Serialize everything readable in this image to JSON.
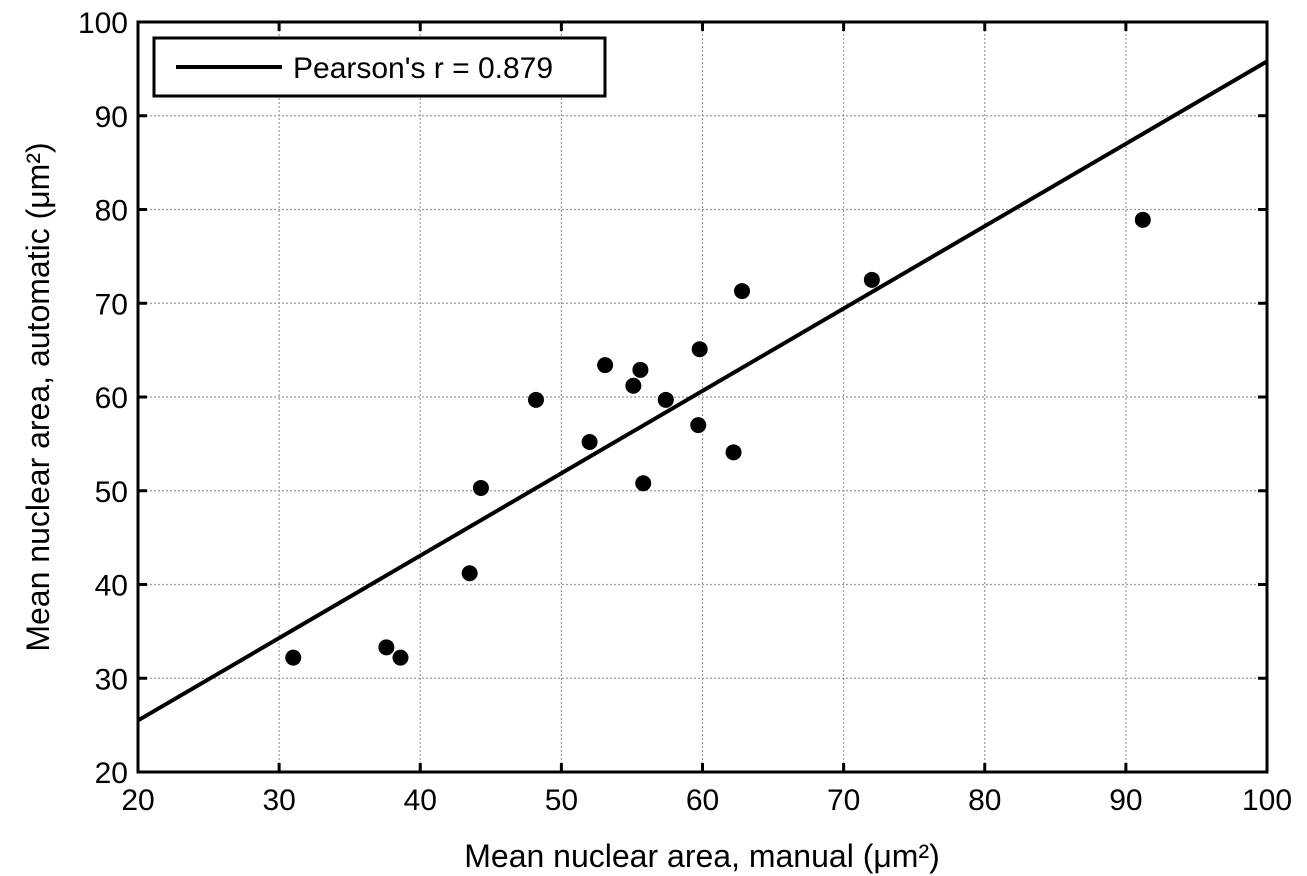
{
  "chart_data": {
    "type": "scatter",
    "xlabel": "Mean nuclear area, manual (μm²)",
    "ylabel": "Mean nuclear area, automatic (μm²)",
    "xlim": [
      20,
      100
    ],
    "ylim": [
      20,
      100
    ],
    "xticks": [
      20,
      30,
      40,
      50,
      60,
      70,
      80,
      90,
      100
    ],
    "yticks": [
      20,
      30,
      40,
      50,
      60,
      70,
      80,
      90,
      100
    ],
    "grid": true,
    "legend_position": "top-left",
    "series": [
      {
        "marker": "circle",
        "color": "#000000",
        "points": [
          {
            "x": 31.0,
            "y": 32.2
          },
          {
            "x": 37.6,
            "y": 33.3
          },
          {
            "x": 38.6,
            "y": 32.2
          },
          {
            "x": 43.5,
            "y": 41.2
          },
          {
            "x": 44.3,
            "y": 50.3
          },
          {
            "x": 48.2,
            "y": 59.7
          },
          {
            "x": 52.0,
            "y": 55.2
          },
          {
            "x": 53.1,
            "y": 63.4
          },
          {
            "x": 55.1,
            "y": 61.2
          },
          {
            "x": 55.6,
            "y": 62.9
          },
          {
            "x": 55.8,
            "y": 50.8
          },
          {
            "x": 57.4,
            "y": 59.7
          },
          {
            "x": 59.7,
            "y": 57.0
          },
          {
            "x": 59.8,
            "y": 65.1
          },
          {
            "x": 62.2,
            "y": 54.1
          },
          {
            "x": 62.8,
            "y": 71.3
          },
          {
            "x": 72.0,
            "y": 72.5
          },
          {
            "x": 91.2,
            "y": 78.9
          }
        ]
      },
      {
        "name": "Pearson's r = 0.879",
        "kind": "line",
        "color": "#000000",
        "points": [
          {
            "x": 20,
            "y": 25.5
          },
          {
            "x": 100,
            "y": 95.8
          }
        ]
      }
    ]
  }
}
